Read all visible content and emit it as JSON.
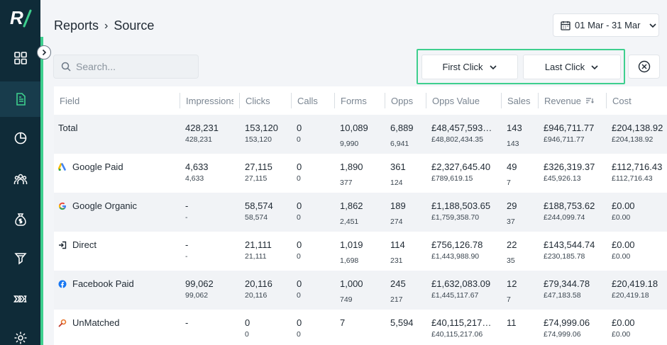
{
  "breadcrumb": {
    "parent": "Reports",
    "separator": "›",
    "current": "Source"
  },
  "date_range": {
    "label": "01 Mar - 31 Mar"
  },
  "search": {
    "placeholder": "Search..."
  },
  "attribution": {
    "first": "First Click",
    "last": "Last Click"
  },
  "colors": {
    "sidebar": "#0f2b38",
    "accent": "#3ecf8e"
  },
  "sidebar": {
    "items": [
      "grid-icon",
      "report-icon",
      "pie-chart-icon",
      "users-icon",
      "money-bag-icon",
      "funnel-icon",
      "pipeline-icon",
      "settings-icon"
    ]
  },
  "table": {
    "headers": [
      "Field",
      "Impressions",
      "Clicks",
      "Calls",
      "Forms",
      "Opps",
      "Opps Value",
      "Sales",
      "Revenue",
      "Cost"
    ],
    "rows": [
      {
        "field": "Total",
        "icon": "",
        "impressions": [
          "428,231",
          "428,231"
        ],
        "clicks": [
          "153,120",
          "153,120"
        ],
        "calls": [
          "0",
          "0"
        ],
        "forms": [
          "10,089",
          "9,990"
        ],
        "opps": [
          "6,889",
          "6,941"
        ],
        "opps_value": [
          "£48,457,593…",
          "£48,802,434.35"
        ],
        "sales": [
          "143",
          "143"
        ],
        "revenue": [
          "£946,711.77",
          "£946,711.77"
        ],
        "cost": [
          "£204,138.92",
          "£204,138.92"
        ]
      },
      {
        "field": "Google Paid",
        "icon": "google-ads-icon",
        "impressions": [
          "4,633",
          "4,633"
        ],
        "clicks": [
          "27,115",
          "27,115"
        ],
        "calls": [
          "0",
          "0"
        ],
        "forms": [
          "1,890",
          "377"
        ],
        "opps": [
          "361",
          "124"
        ],
        "opps_value": [
          "£2,327,645.40",
          "£789,619.15"
        ],
        "sales": [
          "49",
          "7"
        ],
        "revenue": [
          "£326,319.37",
          "£45,926.13"
        ],
        "cost": [
          "£112,716.43",
          "£112,716.43"
        ]
      },
      {
        "field": "Google Organic",
        "icon": "google-icon",
        "impressions": [
          "-",
          "-"
        ],
        "clicks": [
          "58,574",
          "58,574"
        ],
        "calls": [
          "0",
          "0"
        ],
        "forms": [
          "1,862",
          "2,451"
        ],
        "opps": [
          "189",
          "274"
        ],
        "opps_value": [
          "£1,188,503.65",
          "£1,759,358.70"
        ],
        "sales": [
          "29",
          "37"
        ],
        "revenue": [
          "£188,753.62",
          "£244,099.74"
        ],
        "cost": [
          "£0.00",
          "£0.00"
        ]
      },
      {
        "field": "Direct",
        "icon": "direct-icon",
        "impressions": [
          "-",
          "-"
        ],
        "clicks": [
          "21,111",
          "21,111"
        ],
        "calls": [
          "0",
          "0"
        ],
        "forms": [
          "1,019",
          "1,698"
        ],
        "opps": [
          "114",
          "231"
        ],
        "opps_value": [
          "£756,126.78",
          "£1,443,988.90"
        ],
        "sales": [
          "22",
          "35"
        ],
        "revenue": [
          "£143,544.74",
          "£230,185.78"
        ],
        "cost": [
          "£0.00",
          "£0.00"
        ]
      },
      {
        "field": "Facebook Paid",
        "icon": "facebook-icon",
        "impressions": [
          "99,062",
          "99,062"
        ],
        "clicks": [
          "20,116",
          "20,116"
        ],
        "calls": [
          "0",
          "0"
        ],
        "forms": [
          "1,000",
          "749"
        ],
        "opps": [
          "245",
          "217"
        ],
        "opps_value": [
          "£1,632,083.09",
          "£1,445,117.67"
        ],
        "sales": [
          "12",
          "7"
        ],
        "revenue": [
          "£79,344.78",
          "£47,183.58"
        ],
        "cost": [
          "£20,419.18",
          "£20,419.18"
        ]
      },
      {
        "field": "UnMatched",
        "icon": "unmatched-icon",
        "impressions": [
          "-",
          ""
        ],
        "clicks": [
          "0",
          "0"
        ],
        "calls": [
          "0",
          "0"
        ],
        "forms": [
          "7",
          ""
        ],
        "opps": [
          "5,594",
          ""
        ],
        "opps_value": [
          "£40,115,217…",
          "£40,115,217.06"
        ],
        "sales": [
          "11",
          ""
        ],
        "revenue": [
          "£74,999.06",
          "£74,999.06"
        ],
        "cost": [
          "£0.00",
          "£0.00"
        ]
      }
    ]
  }
}
